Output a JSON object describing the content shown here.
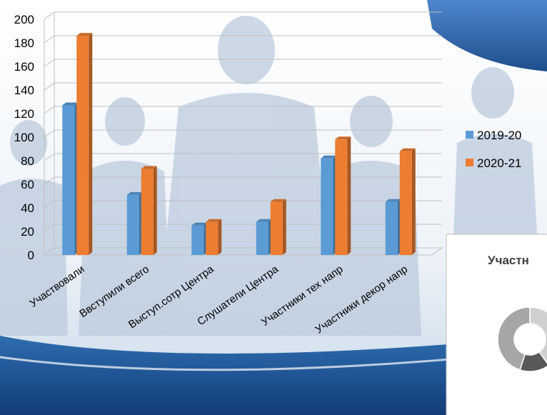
{
  "chart_data": [
    {
      "type": "bar3d",
      "categories": [
        "Участвовали",
        "Ввступили всего",
        "Выступ.сотр Центра",
        "Слушатели Центра",
        "Участники тех напр",
        "Участники декор напр"
      ],
      "series": [
        {
          "name": "2019-20",
          "color": "#5b9bd5",
          "values": [
            127,
            51,
            25,
            28,
            82,
            45
          ]
        },
        {
          "name": "2020-21",
          "color": "#ed7d31",
          "values": [
            186,
            73,
            28,
            45,
            98,
            88
          ]
        }
      ],
      "ylim": [
        0,
        200
      ],
      "yticks": [
        0,
        20,
        40,
        60,
        80,
        100,
        120,
        140,
        160,
        180,
        200
      ],
      "grid": true
    },
    {
      "type": "doughnut",
      "title": "Участн",
      "values": [
        40,
        15,
        45
      ],
      "colors": [
        "#d0d0d0",
        "#595959",
        "#a6a6a6"
      ]
    }
  ]
}
